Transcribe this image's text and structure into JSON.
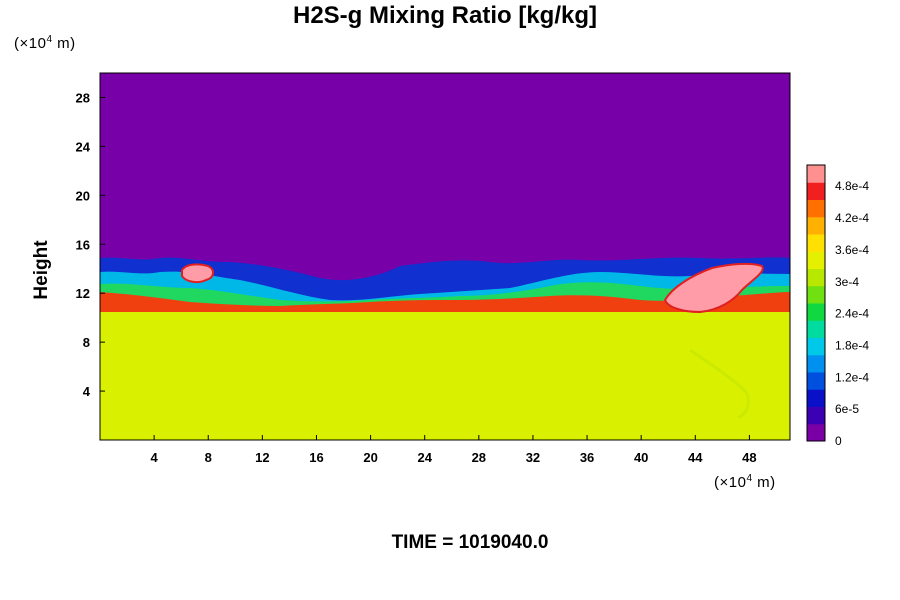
{
  "chart_data": {
    "type": "heatmap",
    "title": "H2S-g Mixing Ratio [kg/kg]",
    "ylabel": "Height",
    "xlabel": "",
    "x_unit_prefix": "(×10",
    "x_unit_exp": "4",
    "x_unit_suffix": " m)",
    "y_unit_prefix": "(×10",
    "y_unit_exp": "4",
    "y_unit_suffix": " m)",
    "xlim": [
      0,
      51
    ],
    "ylim": [
      0,
      30
    ],
    "x_ticks": [
      4,
      8,
      12,
      16,
      20,
      24,
      28,
      32,
      36,
      40,
      44,
      48
    ],
    "y_ticks": [
      4,
      8,
      12,
      16,
      20,
      24,
      28
    ],
    "colorbar": {
      "range": [
        0,
        0.00052
      ],
      "tick_values": [
        0,
        6e-05,
        0.00012,
        0.00018,
        0.00024,
        0.0003,
        0.00036,
        0.00042,
        0.00048
      ],
      "tick_labels": [
        "0",
        "6e-5",
        "1.2e-4",
        "1.8e-4",
        "2.4e-4",
        "3e-4",
        "3.6e-4",
        "4.2e-4",
        "4.8e-4"
      ],
      "colors": [
        "#7a00a6",
        "#3c00b4",
        "#0a10c8",
        "#0050e0",
        "#0090f0",
        "#00c8e8",
        "#00dca0",
        "#10d840",
        "#70e010",
        "#b8e800",
        "#e4f000",
        "#ffe000",
        "#ffb000",
        "#ff7000",
        "#f02020",
        "#ff9090"
      ]
    },
    "fields": {
      "upper_background": "#7800a8",
      "lower_background": "#d9f000"
    },
    "footer": "TIME = 1019040.0"
  }
}
